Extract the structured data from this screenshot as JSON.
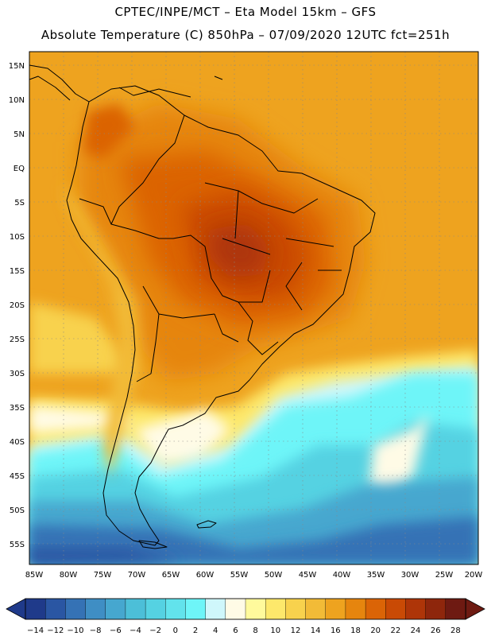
{
  "header": {
    "line1": "CPTEC/INPE/MCT –  Eta Model 15km – GFS",
    "line2": "Absolute Temperature (C) 850hPa – 07/09/2020 12UTC fct=251h"
  },
  "map": {
    "lat_labels": [
      "15N",
      "10N",
      "5N",
      "EQ",
      "5S",
      "10S",
      "15S",
      "20S",
      "25S",
      "30S",
      "35S",
      "40S",
      "45S",
      "50S",
      "55S"
    ],
    "lon_labels": [
      "85W",
      "80W",
      "75W",
      "70W",
      "65W",
      "60W",
      "55W",
      "50W",
      "45W",
      "40W",
      "35W",
      "30W",
      "25W",
      "20W"
    ]
  },
  "colorbar": {
    "tick_labels": [
      "-14",
      "-12",
      "-10",
      "-8",
      "-6",
      "-4",
      "-2",
      "0",
      "2",
      "4",
      "6",
      "8",
      "10",
      "12",
      "14",
      "16",
      "18",
      "20",
      "22",
      "24",
      "26",
      "28"
    ],
    "colors": [
      "#1f3a8a",
      "#2a56a3",
      "#3572b5",
      "#3f8ec4",
      "#46a7cf",
      "#4cbfd8",
      "#55d2e2",
      "#62e3ec",
      "#6ef5f8",
      "#cff7fb",
      "#fffbe6",
      "#fffa9c",
      "#fde86b",
      "#f8d24d",
      "#f2bb37",
      "#eea31f",
      "#e6850e",
      "#db6406",
      "#c94a05",
      "#ae3508",
      "#8e260c",
      "#6e1a12"
    ]
  }
}
